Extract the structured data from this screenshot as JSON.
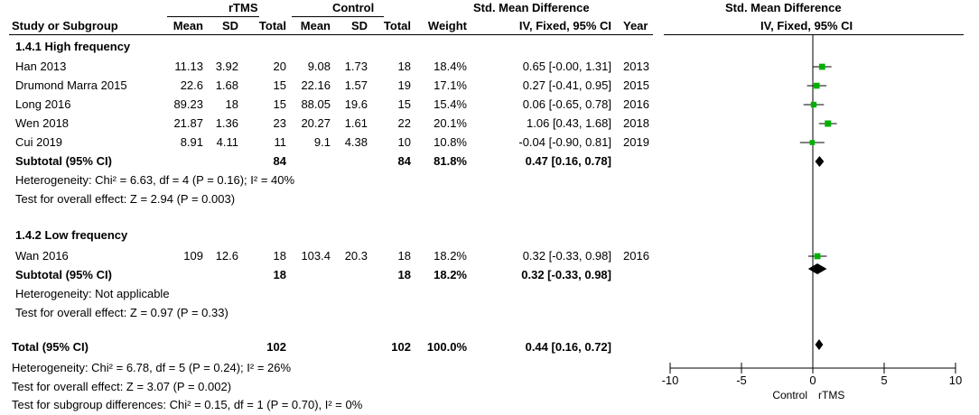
{
  "headers": {
    "group1": "rTMS",
    "group2": "Control",
    "smd_header": "Std. Mean Difference",
    "study_col": "Study or Subgroup",
    "mean": "Mean",
    "sd": "SD",
    "total": "Total",
    "weight": "Weight",
    "smd_method": "IV, Fixed, 95% CI",
    "year": "Year",
    "plot_title": "Std. Mean Difference",
    "plot_method": "IV, Fixed, 95% CI"
  },
  "subgroups": [
    {
      "title": "1.4.1 High frequency",
      "studies": [
        {
          "name": "Han 2013",
          "mean1": "11.13",
          "sd1": "3.92",
          "n1": "20",
          "mean2": "9.08",
          "sd2": "1.73",
          "n2": "18",
          "weight": "18.4%",
          "ci": "0.65 [-0.00, 1.31]",
          "year": "2013"
        },
        {
          "name": "Drumond Marra 2015",
          "mean1": "22.6",
          "sd1": "1.68",
          "n1": "15",
          "mean2": "22.16",
          "sd2": "1.57",
          "n2": "19",
          "weight": "17.1%",
          "ci": "0.27 [-0.41, 0.95]",
          "year": "2015"
        },
        {
          "name": "Long 2016",
          "mean1": "89.23",
          "sd1": "18",
          "n1": "15",
          "mean2": "88.05",
          "sd2": "19.6",
          "n2": "15",
          "weight": "15.4%",
          "ci": "0.06 [-0.65, 0.78]",
          "year": "2016"
        },
        {
          "name": "Wen 2018",
          "mean1": "21.87",
          "sd1": "1.36",
          "n1": "23",
          "mean2": "20.27",
          "sd2": "1.61",
          "n2": "22",
          "weight": "20.1%",
          "ci": "1.06 [0.43, 1.68]",
          "year": "2018"
        },
        {
          "name": "Cui 2019",
          "mean1": "8.91",
          "sd1": "4.11",
          "n1": "11",
          "mean2": "9.1",
          "sd2": "4.38",
          "n2": "10",
          "weight": "10.8%",
          "ci": "-0.04 [-0.90, 0.81]",
          "year": "2019"
        }
      ],
      "subtotal": {
        "label": "Subtotal (95% CI)",
        "n1": "84",
        "n2": "84",
        "weight": "81.8%",
        "ci": "0.47 [0.16, 0.78]"
      },
      "heterogeneity": "Heterogeneity: Chi² = 6.63, df = 4 (P = 0.16); I² = 40%",
      "overall": "Test for overall effect: Z = 2.94 (P = 0.003)"
    },
    {
      "title": "1.4.2 Low frequency",
      "studies": [
        {
          "name": "Wan 2016",
          "mean1": "109",
          "sd1": "12.6",
          "n1": "18",
          "mean2": "103.4",
          "sd2": "20.3",
          "n2": "18",
          "weight": "18.2%",
          "ci": "0.32 [-0.33, 0.98]",
          "year": "2016"
        }
      ],
      "subtotal": {
        "label": "Subtotal (95% CI)",
        "n1": "18",
        "n2": "18",
        "weight": "18.2%",
        "ci": "0.32 [-0.33, 0.98]"
      },
      "heterogeneity": "Heterogeneity: Not applicable",
      "overall": "Test for overall effect: Z = 0.97 (P = 0.33)"
    }
  ],
  "total": {
    "label": "Total (95% CI)",
    "n1": "102",
    "n2": "102",
    "weight": "100.0%",
    "ci": "0.44 [0.16, 0.72]",
    "heterogeneity": "Heterogeneity: Chi² = 6.78, df = 5 (P = 0.24); I² = 26%",
    "overall": "Test for overall effect: Z = 3.07 (P = 0.002)",
    "subgroup_diff": "Test for subgroup differences: Chi² = 0.15, df = 1 (P = 0.70), I² = 0%"
  },
  "chart_data": {
    "type": "forest",
    "title": "Std. Mean Difference",
    "subtitle": "IV, Fixed, 95% CI",
    "xlim": [
      -10,
      10
    ],
    "xticks": [
      -10,
      -5,
      0,
      5,
      10
    ],
    "xlabel_left": "Control",
    "xlabel_right": "rTMS",
    "studies": [
      {
        "name": "Han 2013",
        "est": 0.65,
        "lo": -0.0,
        "hi": 1.31,
        "weight": 18.4
      },
      {
        "name": "Drumond Marra 2015",
        "est": 0.27,
        "lo": -0.41,
        "hi": 0.95,
        "weight": 17.1
      },
      {
        "name": "Long 2016",
        "est": 0.06,
        "lo": -0.65,
        "hi": 0.78,
        "weight": 15.4
      },
      {
        "name": "Wen 2018",
        "est": 1.06,
        "lo": 0.43,
        "hi": 1.68,
        "weight": 20.1
      },
      {
        "name": "Cui 2019",
        "est": -0.04,
        "lo": -0.9,
        "hi": 0.81,
        "weight": 10.8
      },
      {
        "name": "Wan 2016",
        "est": 0.32,
        "lo": -0.33,
        "hi": 0.98,
        "weight": 18.2
      }
    ],
    "diamonds": [
      {
        "name": "Subtotal High frequency",
        "est": 0.47,
        "lo": 0.16,
        "hi": 0.78
      },
      {
        "name": "Subtotal Low frequency",
        "est": 0.32,
        "lo": -0.33,
        "hi": 0.98
      },
      {
        "name": "Total",
        "est": 0.44,
        "lo": 0.16,
        "hi": 0.72
      }
    ],
    "colors": {
      "square": "#00b000",
      "line": "#000000",
      "diamond": "#000000"
    }
  }
}
